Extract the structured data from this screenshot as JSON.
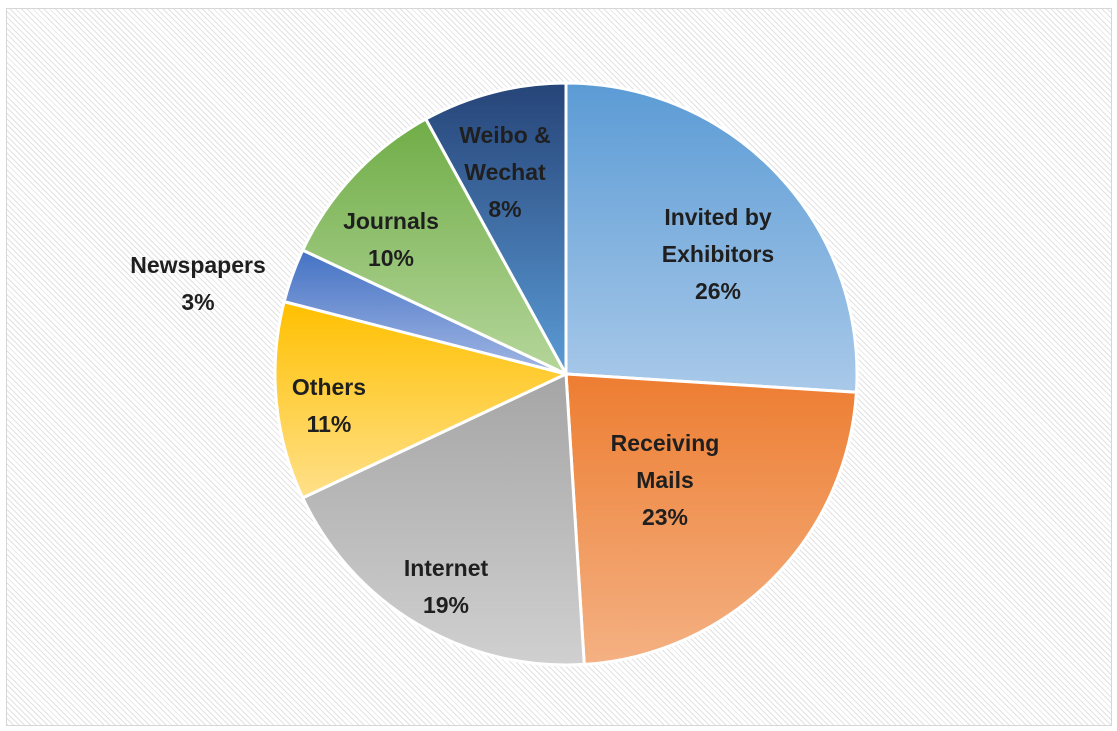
{
  "chart_data": {
    "type": "pie",
    "title": "",
    "start_angle_deg": 0,
    "direction": "clockwise",
    "slices": [
      {
        "label_lines": [
          "Invited by",
          "Exhibitors"
        ],
        "value": 26,
        "value_label": "26%",
        "color_light": "#a9c9e9",
        "color_dark": "#5b9bd5"
      },
      {
        "label_lines": [
          "Receiving",
          "Mails"
        ],
        "value": 23,
        "value_label": "23%",
        "color_light": "#f4b183",
        "color_dark": "#ed7d31"
      },
      {
        "label_lines": [
          "Internet"
        ],
        "value": 19,
        "value_label": "19%",
        "color_light": "#d0d0d0",
        "color_dark": "#a5a5a5"
      },
      {
        "label_lines": [
          "Others"
        ],
        "value": 11,
        "value_label": "11%",
        "color_light": "#ffe08a",
        "color_dark": "#ffc000"
      },
      {
        "label_lines": [
          "Newspapers"
        ],
        "value": 3,
        "value_label": "3%",
        "color_light": "#a2b7e4",
        "color_dark": "#4472c4"
      },
      {
        "label_lines": [
          "Journals"
        ],
        "value": 10,
        "value_label": "10%",
        "color_light": "#b5d69b",
        "color_dark": "#70ad47"
      },
      {
        "label_lines": [
          "Weibo &",
          "Wechat"
        ],
        "value": 8,
        "value_label": "8%",
        "color_light": "#5b9bd5",
        "color_dark": "#264478"
      }
    ]
  }
}
